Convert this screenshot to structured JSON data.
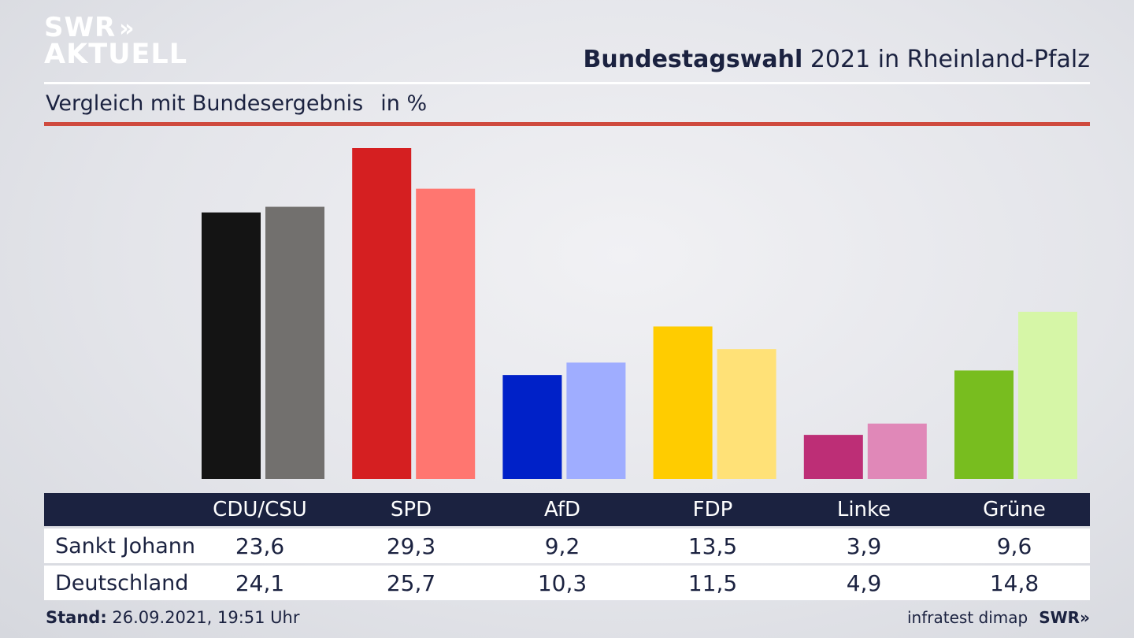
{
  "brand": {
    "line1": "SWR",
    "arrows": "»",
    "line2": "AKTUELL"
  },
  "header": {
    "title_bold": "Bundestagswahl",
    "title_rest": " 2021 in Rheinland-Pfalz",
    "subtitle": "Vergleich mit Bundesergebnis",
    "unit": "in %"
  },
  "colors": {
    "title": "#1b2240",
    "accent_rule": "#cf4a3e",
    "table_header_bg": "#1b2240"
  },
  "chart_data": {
    "type": "bar",
    "categories": [
      "CDU/CSU",
      "SPD",
      "AfD",
      "FDP",
      "Linke",
      "Grüne"
    ],
    "series": [
      {
        "name": "Sankt Johann",
        "values": [
          23.6,
          29.3,
          9.2,
          13.5,
          3.9,
          9.6
        ],
        "colors": [
          "#141414",
          "#d51f21",
          "#0021c8",
          "#ffcc00",
          "#bd2e76",
          "#78bd1f"
        ]
      },
      {
        "name": "Deutschland",
        "values": [
          24.1,
          25.7,
          10.3,
          11.5,
          4.9,
          14.8
        ],
        "colors": [
          "#72706e",
          "#ff7670",
          "#9fadff",
          "#ffe177",
          "#e088b8",
          "#d6f6a7"
        ]
      }
    ],
    "ylim": [
      0,
      30
    ],
    "title": "Bundestagswahl 2021 in Rheinland-Pfalz",
    "subtitle": "Vergleich mit Bundesergebnis",
    "ylabel": "in %",
    "grid": false
  },
  "table": {
    "headers": [
      "CDU/CSU",
      "SPD",
      "AfD",
      "FDP",
      "Linke",
      "Grüne"
    ],
    "rows": [
      {
        "label": "Sankt Johann",
        "values": [
          "23,6",
          "29,3",
          "9,2",
          "13,5",
          "3,9",
          "9,6"
        ]
      },
      {
        "label": "Deutschland",
        "values": [
          "24,1",
          "25,7",
          "10,3",
          "11,5",
          "4,9",
          "14,8"
        ]
      }
    ]
  },
  "footer": {
    "stand_label": "Stand:",
    "stand_value": " 26.09.2021, 19:51 Uhr",
    "source": "infratest dimap",
    "swr": "SWR»"
  }
}
